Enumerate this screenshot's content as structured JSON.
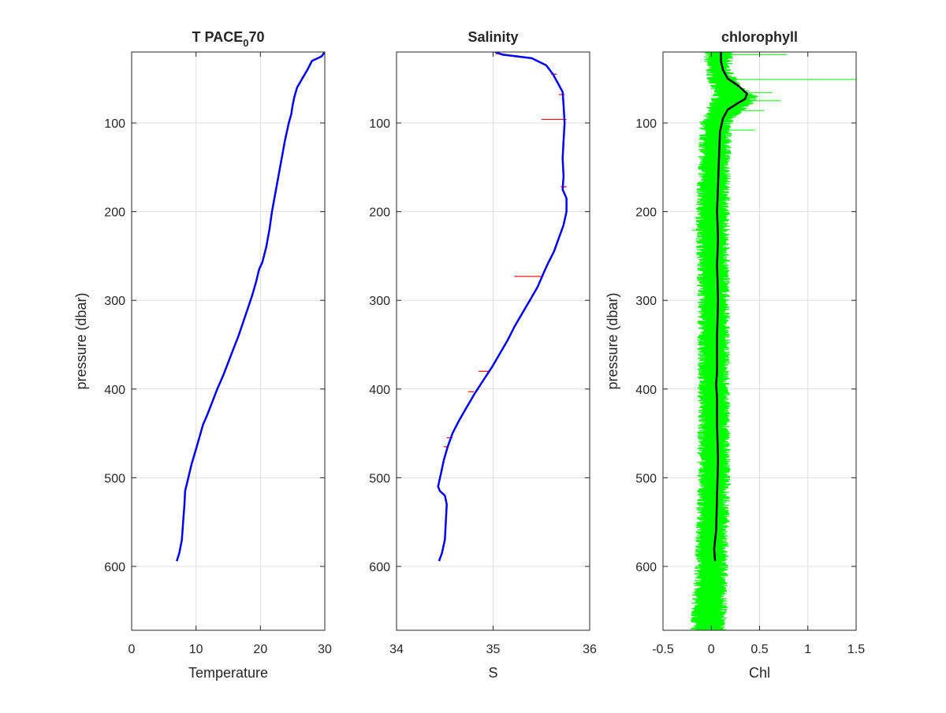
{
  "figure": {
    "background": "#ffffff"
  },
  "chart_data": [
    {
      "type": "line",
      "title": "T PACE",
      "title_subscript": "0",
      "title_suffix": "70",
      "xlabel": "Temperature",
      "ylabel": "pressure (dbar)",
      "xlim": [
        0,
        30
      ],
      "ylim": [
        20,
        672
      ],
      "y_reversed": true,
      "grid": true,
      "xticks": [
        0,
        10,
        20,
        30
      ],
      "yticks": [
        100,
        200,
        300,
        400,
        500,
        600
      ],
      "xtick_labels": [
        "0",
        "10",
        "20",
        "30"
      ],
      "ytick_labels": [
        "100",
        "200",
        "300",
        "400",
        "500",
        "600"
      ],
      "series": [
        {
          "color": "#0000ff",
          "points": [
            [
              30.0,
              20
            ],
            [
              29.5,
              25
            ],
            [
              28.0,
              30
            ],
            [
              27.3,
              40
            ],
            [
              26.5,
              50
            ],
            [
              25.7,
              60
            ],
            [
              25.3,
              70
            ],
            [
              25.0,
              80
            ],
            [
              24.8,
              90
            ],
            [
              24.4,
              100
            ],
            [
              23.8,
              120
            ],
            [
              23.3,
              140
            ],
            [
              22.8,
              160
            ],
            [
              22.3,
              180
            ],
            [
              21.8,
              200
            ],
            [
              21.4,
              220
            ],
            [
              20.9,
              240
            ],
            [
              20.3,
              257
            ],
            [
              19.8,
              265
            ],
            [
              19.3,
              280
            ],
            [
              18.7,
              295
            ],
            [
              18.0,
              310
            ],
            [
              17.3,
              325
            ],
            [
              16.6,
              340
            ],
            [
              15.8,
              355
            ],
            [
              15.0,
              370
            ],
            [
              14.2,
              385
            ],
            [
              13.3,
              400
            ],
            [
              12.5,
              415
            ],
            [
              11.7,
              430
            ],
            [
              11.1,
              440
            ],
            [
              10.5,
              455
            ],
            [
              9.9,
              470
            ],
            [
              9.3,
              485
            ],
            [
              8.8,
              500
            ],
            [
              8.3,
              515
            ],
            [
              8.2,
              530
            ],
            [
              8.0,
              550
            ],
            [
              7.8,
              570
            ],
            [
              7.4,
              585
            ],
            [
              7.0,
              594
            ]
          ]
        }
      ]
    },
    {
      "type": "line",
      "title": "Salinity",
      "xlabel": "S",
      "xlim": [
        34,
        36
      ],
      "ylim": [
        20,
        672
      ],
      "y_reversed": true,
      "grid": true,
      "xticks": [
        34,
        35,
        36
      ],
      "yticks": [
        100,
        200,
        300,
        400,
        500,
        600
      ],
      "xtick_labels": [
        "34",
        "35",
        "36"
      ],
      "ytick_labels": [
        "100",
        "200",
        "300",
        "400",
        "500",
        "600"
      ],
      "series": [
        {
          "color": "#0000ff",
          "points": [
            [
              35.02,
              20
            ],
            [
              35.1,
              23
            ],
            [
              35.4,
              27
            ],
            [
              35.55,
              35
            ],
            [
              35.62,
              45
            ],
            [
              35.67,
              55
            ],
            [
              35.72,
              65
            ],
            [
              35.73,
              80
            ],
            [
              35.74,
              100
            ],
            [
              35.73,
              120
            ],
            [
              35.72,
              140
            ],
            [
              35.73,
              160
            ],
            [
              35.72,
              175
            ],
            [
              35.76,
              185
            ],
            [
              35.76,
              200
            ],
            [
              35.73,
              215
            ],
            [
              35.68,
              230
            ],
            [
              35.63,
              245
            ],
            [
              35.57,
              258
            ],
            [
              35.52,
              270
            ],
            [
              35.46,
              285
            ],
            [
              35.38,
              300
            ],
            [
              35.3,
              315
            ],
            [
              35.22,
              330
            ],
            [
              35.15,
              345
            ],
            [
              35.07,
              360
            ],
            [
              34.99,
              375
            ],
            [
              34.9,
              390
            ],
            [
              34.81,
              405
            ],
            [
              34.73,
              420
            ],
            [
              34.65,
              435
            ],
            [
              34.58,
              450
            ],
            [
              34.53,
              465
            ],
            [
              34.49,
              480
            ],
            [
              34.46,
              495
            ],
            [
              34.44,
              505
            ],
            [
              34.43,
              510
            ],
            [
              34.45,
              515
            ],
            [
              34.5,
              520
            ],
            [
              34.52,
              530
            ],
            [
              34.51,
              550
            ],
            [
              34.5,
              570
            ],
            [
              34.47,
              585
            ],
            [
              34.44,
              594
            ]
          ]
        }
      ],
      "error_bars": {
        "color": "#ff0000",
        "items": [
          [
            35.03,
            35.1,
            22
          ],
          [
            35.6,
            35.66,
            45
          ],
          [
            35.68,
            35.74,
            68
          ],
          [
            35.5,
            35.76,
            96
          ],
          [
            35.7,
            35.76,
            172
          ],
          [
            35.22,
            35.52,
            273
          ],
          [
            34.85,
            34.95,
            380
          ],
          [
            34.74,
            34.8,
            403
          ],
          [
            34.52,
            34.58,
            455
          ],
          [
            34.49,
            34.54,
            465
          ]
        ]
      }
    },
    {
      "type": "line",
      "title": "chlorophyll",
      "xlabel": "Chl",
      "ylabel": "pressure (dbar)",
      "xlim": [
        -0.5,
        1.5
      ],
      "ylim": [
        20,
        672
      ],
      "y_reversed": true,
      "grid": true,
      "xticks": [
        -0.5,
        0,
        0.5,
        1,
        1.5
      ],
      "yticks": [
        100,
        200,
        300,
        400,
        500,
        600
      ],
      "xtick_labels": [
        "-0.5",
        "0",
        "0.5",
        "1",
        "1.5"
      ],
      "ytick_labels": [
        "100",
        "200",
        "300",
        "400",
        "500",
        "600"
      ],
      "envelope": {
        "color": "#00ff00",
        "profile": [
          [
            20,
            -0.05,
            0.2
          ],
          [
            40,
            -0.02,
            0.17
          ],
          [
            60,
            0.02,
            0.28
          ],
          [
            70,
            0.05,
            0.45
          ],
          [
            80,
            0.01,
            0.38
          ],
          [
            90,
            -0.04,
            0.25
          ],
          [
            100,
            -0.08,
            0.18
          ],
          [
            150,
            -0.1,
            0.16
          ],
          [
            200,
            -0.12,
            0.15
          ],
          [
            300,
            -0.1,
            0.15
          ],
          [
            400,
            -0.1,
            0.15
          ],
          [
            500,
            -0.1,
            0.16
          ],
          [
            600,
            -0.13,
            0.13
          ],
          [
            672,
            -0.18,
            0.12
          ]
        ],
        "spikes": [
          [
            1.5,
            51
          ],
          [
            0.78,
            23
          ],
          [
            0.72,
            75
          ],
          [
            0.63,
            66
          ],
          [
            0.55,
            86
          ],
          [
            0.45,
            108
          ],
          [
            -0.2,
            221
          ]
        ]
      },
      "series": [
        {
          "color": "#000000",
          "points": [
            [
              0.1,
              20
            ],
            [
              0.1,
              30
            ],
            [
              0.12,
              40
            ],
            [
              0.17,
              50
            ],
            [
              0.28,
              58
            ],
            [
              0.37,
              67
            ],
            [
              0.35,
              73
            ],
            [
              0.27,
              78
            ],
            [
              0.17,
              85
            ],
            [
              0.12,
              95
            ],
            [
              0.09,
              110
            ],
            [
              0.08,
              140
            ],
            [
              0.07,
              170
            ],
            [
              0.06,
              200
            ],
            [
              0.07,
              230
            ],
            [
              0.06,
              260
            ],
            [
              0.07,
              300
            ],
            [
              0.06,
              340
            ],
            [
              0.06,
              380
            ],
            [
              0.05,
              395
            ],
            [
              0.06,
              410
            ],
            [
              0.06,
              440
            ],
            [
              0.07,
              480
            ],
            [
              0.06,
              520
            ],
            [
              0.05,
              560
            ],
            [
              0.03,
              580
            ],
            [
              0.04,
              594
            ]
          ]
        }
      ]
    }
  ]
}
